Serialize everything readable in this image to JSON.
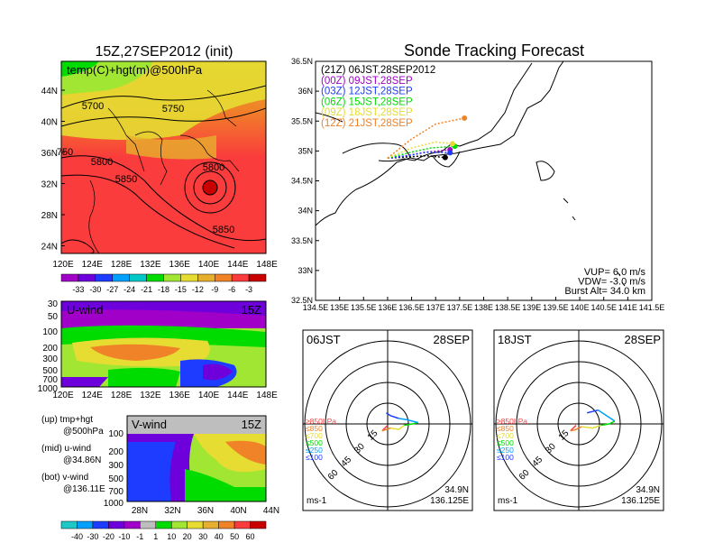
{
  "title": "Sonde Tracking Forecast",
  "init_title": "15Z,27SEP2012 (init)",
  "upper_map": {
    "label": "temp(C)+hgt(m)@500hPa",
    "lat_ticks": [
      "44N",
      "40N",
      "36N",
      "32N",
      "28N",
      "24N"
    ],
    "lon_ticks": [
      "120E",
      "124E",
      "128E",
      "132E",
      "136E",
      "140E",
      "144E",
      "148E"
    ],
    "contour_labels": [
      "5700",
      "5750",
      "5800",
      "5850",
      "5800",
      "5850",
      "750"
    ],
    "colorbar": {
      "ticks": [
        "-33",
        "-30",
        "-27",
        "-24",
        "-21",
        "-18",
        "-15",
        "-12",
        "-9",
        "-6",
        "-3"
      ],
      "colors": [
        "#a000c8",
        "#6e00dc",
        "#1e3cff",
        "#00a0ff",
        "#00c8c8",
        "#00dc00",
        "#a0e632",
        "#e6dc32",
        "#e6af2d",
        "#f08228",
        "#fa3c3c",
        "#c80000"
      ]
    }
  },
  "uwind": {
    "label": "U-wind",
    "time": "15Z",
    "p_ticks": [
      "30",
      "50",
      "100",
      "200",
      "300",
      "500",
      "700",
      "1000"
    ],
    "lon_ticks": [
      "120E",
      "124E",
      "128E",
      "132E",
      "136E",
      "140E",
      "144E",
      "148E"
    ]
  },
  "vwind": {
    "label": "V-wind",
    "time": "15Z",
    "p_ticks": [
      "100",
      "200",
      "300",
      "500",
      "700",
      "1000"
    ],
    "lat_ticks": [
      "28N",
      "32N",
      "36N",
      "40N",
      "44N"
    ]
  },
  "notes": [
    {
      "a": "(up) tmp+hgt",
      "b": "@500hPa"
    },
    {
      "a": "(mid) u-wind",
      "b": "@34.86N"
    },
    {
      "a": "(bot) v-wind",
      "b": "@136.11E"
    }
  ],
  "wind_colorbar": {
    "ticks": [
      "-40",
      "-30",
      "-20",
      "-10",
      "-1",
      "1",
      "10",
      "20",
      "30",
      "40",
      "50",
      "60"
    ],
    "colors": [
      "#1ec8c8",
      "#00a0ff",
      "#1e3cff",
      "#6e00dc",
      "#a000c8",
      "#bebebe",
      "#00dc00",
      "#a0e632",
      "#e6dc32",
      "#e6af2d",
      "#f08228",
      "#fa3c3c",
      "#c80000"
    ]
  },
  "track_map": {
    "lat_ticks": [
      "36.5N",
      "36N",
      "35.5N",
      "35N",
      "34.5N",
      "34N",
      "33.5N",
      "33N",
      "32.5N"
    ],
    "lon_ticks": [
      "134.5E",
      "135E",
      "135.5E",
      "136E",
      "136.5E",
      "137E",
      "137.5E",
      "138E",
      "138.5E",
      "139E",
      "139.5E",
      "140E",
      "140.5E",
      "141E",
      "141.5E"
    ],
    "legend": [
      {
        "text": "(21Z)  06JST,28SEP2012",
        "color": "#000000"
      },
      {
        "text": "(00Z)  09JST,28SEP",
        "color": "#a000c8"
      },
      {
        "text": "(03Z)  12JST,28SEP",
        "color": "#1e3cff"
      },
      {
        "text": "(06Z)  15JST,28SEP",
        "color": "#00dc00"
      },
      {
        "text": "(09Z)  18JST,28SEP",
        "color": "#e6dc32"
      },
      {
        "text": "(12Z)  21JST,28SEP",
        "color": "#f08228"
      }
    ],
    "params": [
      "VUP=  6.0  m/s",
      "VDW=  -3.0  m/s",
      "Burst Alt=  34.0  km"
    ]
  },
  "polar_left": {
    "time": "06JST",
    "date": "28SEP",
    "lat": "34.9N",
    "lon": "136.125E",
    "unit": "ms-1",
    "ring_labels": [
      "15",
      "30",
      "45",
      "60"
    ],
    "levels": [
      {
        "t": "≥850hPa",
        "c": "#fa3c3c"
      },
      {
        "t": "≤850",
        "c": "#f08228"
      },
      {
        "t": "≤700",
        "c": "#e6dc32"
      },
      {
        "t": "≤500",
        "c": "#00dc00"
      },
      {
        "t": "≤250",
        "c": "#00a0ff"
      },
      {
        "t": "≤100",
        "c": "#1e3cff"
      }
    ]
  },
  "polar_right": {
    "time": "18JST",
    "date": "28SEP",
    "lat": "34.9N",
    "lon": "136.125E",
    "unit": "ms-1",
    "ring_labels": [
      "15",
      "30",
      "45",
      "60"
    ],
    "levels": [
      {
        "t": "≥850hPa",
        "c": "#fa3c3c"
      },
      {
        "t": "≤850",
        "c": "#f08228"
      },
      {
        "t": "≤700",
        "c": "#e6dc32"
      },
      {
        "t": "≤500",
        "c": "#00dc00"
      },
      {
        "t": "≤250",
        "c": "#00a0ff"
      },
      {
        "t": "≤100",
        "c": "#1e3cff"
      }
    ]
  },
  "chart_data": [
    {
      "type": "line",
      "name": "sonde-tracks",
      "x_unit": "degE",
      "y_unit": "degN",
      "xlim": [
        134.5,
        141.5
      ],
      "ylim": [
        32.5,
        36.5
      ],
      "series": [
        {
          "color": "#000000",
          "x": [
            136.0,
            136.4,
            136.8,
            137.2
          ],
          "y": [
            34.88,
            34.9,
            34.92,
            34.89
          ]
        },
        {
          "color": "#a000c8",
          "x": [
            136.0,
            136.4,
            136.8,
            137.3
          ],
          "y": [
            34.88,
            34.92,
            34.98,
            35.02
          ]
        },
        {
          "color": "#1e3cff",
          "x": [
            136.0,
            136.4,
            136.8,
            137.3
          ],
          "y": [
            34.88,
            34.92,
            34.98,
            34.97
          ]
        },
        {
          "color": "#00dc00",
          "x": [
            136.0,
            136.5,
            136.9,
            137.4
          ],
          "y": [
            34.88,
            34.98,
            35.05,
            35.08
          ]
        },
        {
          "color": "#e6dc32",
          "x": [
            136.0,
            136.5,
            137.0,
            137.35
          ],
          "y": [
            34.88,
            35.05,
            35.15,
            35.12
          ]
        },
        {
          "color": "#f08228",
          "x": [
            136.0,
            136.5,
            137.0,
            137.6
          ],
          "y": [
            34.88,
            35.2,
            35.45,
            35.55
          ]
        }
      ]
    },
    {
      "type": "line",
      "name": "hodograph-06JST",
      "unit": "ms-1",
      "rlim": [
        0,
        75
      ],
      "series": [
        {
          "color": "#fa3c3c",
          "u": [
            0,
            -2,
            -4
          ],
          "v": [
            -1,
            -3,
            -5
          ]
        },
        {
          "color": "#f08228",
          "u": [
            -4,
            -1,
            2
          ],
          "v": [
            -5,
            -4,
            -3
          ]
        },
        {
          "color": "#e6dc32",
          "u": [
            2,
            8,
            12
          ],
          "v": [
            -3,
            -4,
            -1
          ]
        },
        {
          "color": "#00dc00",
          "u": [
            12,
            18,
            22
          ],
          "v": [
            -1,
            0,
            1
          ]
        },
        {
          "color": "#00a0ff",
          "u": [
            22,
            14,
            8
          ],
          "v": [
            1,
            3,
            4
          ]
        },
        {
          "color": "#1e3cff",
          "u": [
            8,
            2,
            -1
          ],
          "v": [
            4,
            6,
            8
          ]
        }
      ]
    },
    {
      "type": "line",
      "name": "hodograph-18JST",
      "unit": "ms-1",
      "rlim": [
        0,
        75
      ],
      "series": [
        {
          "color": "#fa3c3c",
          "u": [
            -2,
            -4,
            -6
          ],
          "v": [
            -1,
            -3,
            -5
          ]
        },
        {
          "color": "#f08228",
          "u": [
            -6,
            -2,
            2
          ],
          "v": [
            -5,
            -4,
            -2
          ]
        },
        {
          "color": "#e6dc32",
          "u": [
            2,
            10,
            16
          ],
          "v": [
            -2,
            -3,
            -1
          ]
        },
        {
          "color": "#00dc00",
          "u": [
            16,
            22,
            26
          ],
          "v": [
            -1,
            0,
            2
          ]
        },
        {
          "color": "#00a0ff",
          "u": [
            26,
            20,
            14
          ],
          "v": [
            2,
            6,
            10
          ]
        },
        {
          "color": "#1e3cff",
          "u": [
            14,
            10,
            6
          ],
          "v": [
            10,
            9,
            8
          ]
        }
      ]
    }
  ]
}
